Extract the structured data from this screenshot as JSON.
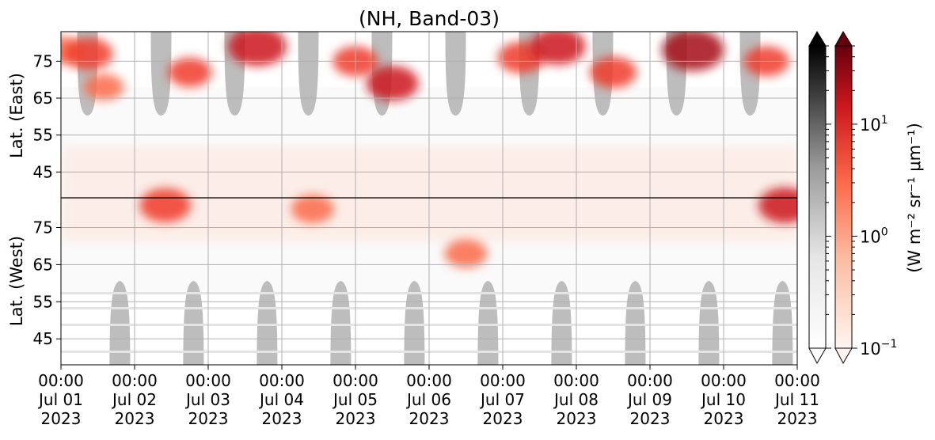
{
  "chart_data": {
    "type": "heatmap",
    "title": "(NH, Band-03)",
    "ylabel_upper": "Lat. (East)",
    "ylabel_lower": "Lat. (West)",
    "xlim": [
      "2023-07-01 00:00",
      "2023-07-11 00:00"
    ],
    "x_ticks": [
      {
        "time": "00:00",
        "date": "Jul 01",
        "year": "2023"
      },
      {
        "time": "00:00",
        "date": "Jul 02",
        "year": "2023"
      },
      {
        "time": "00:00",
        "date": "Jul 03",
        "year": "2023"
      },
      {
        "time": "00:00",
        "date": "Jul 04",
        "year": "2023"
      },
      {
        "time": "00:00",
        "date": "Jul 05",
        "year": "2023"
      },
      {
        "time": "00:00",
        "date": "Jul 06",
        "year": "2023"
      },
      {
        "time": "00:00",
        "date": "Jul 07",
        "year": "2023"
      },
      {
        "time": "00:00",
        "date": "Jul 08",
        "year": "2023"
      },
      {
        "time": "00:00",
        "date": "Jul 09",
        "year": "2023"
      },
      {
        "time": "00:00",
        "date": "Jul 10",
        "year": "2023"
      },
      {
        "time": "00:00",
        "date": "Jul 11",
        "year": "2023"
      }
    ],
    "y_ticks_upper": [
      "45",
      "55",
      "65",
      "75"
    ],
    "y_ticks_lower": [
      "75",
      "65",
      "55",
      "45"
    ],
    "upper_lat_range": [
      38,
      83
    ],
    "lower_lat_range": [
      83,
      38
    ],
    "grid": true,
    "colorbar": {
      "label": "(W m⁻² sr⁻¹ μm⁻¹)",
      "scale": "log",
      "range": [
        0.1,
        50
      ],
      "ticks": [
        {
          "base": "10",
          "exp": "−1",
          "value": 0.1
        },
        {
          "base": "10",
          "exp": "0",
          "value": 1
        },
        {
          "base": "10",
          "exp": "1",
          "value": 10
        }
      ],
      "cmaps": [
        "Greys",
        "Reds"
      ],
      "extend": "both"
    },
    "masked_daylight_color": "#bdbdbd",
    "intensity_series": [
      {
        "time": "2023-07-01 00:00",
        "lat_east": 78,
        "value": 2.5
      },
      {
        "time": "2023-07-01 09:00",
        "lat_east": 77,
        "value": 6.0
      },
      {
        "time": "2023-07-01 14:00",
        "lat_east": 68,
        "value": 2.0
      },
      {
        "time": "2023-07-02 10:00",
        "lat_west": 81,
        "value": 8.0
      },
      {
        "time": "2023-07-02 18:00",
        "lat_east": 72,
        "value": 3.5
      },
      {
        "time": "2023-07-03 16:00",
        "lat_east": 79,
        "value": 18.0
      },
      {
        "time": "2023-07-04 10:00",
        "lat_west": 80,
        "value": 3.0
      },
      {
        "time": "2023-07-05 00:00",
        "lat_east": 75,
        "value": 4.0
      },
      {
        "time": "2023-07-05 12:00",
        "lat_east": 69,
        "value": 9.0
      },
      {
        "time": "2023-07-06 12:00",
        "lat_west": 68,
        "value": 3.0
      },
      {
        "time": "2023-07-07 06:00",
        "lat_east": 76,
        "value": 5.0
      },
      {
        "time": "2023-07-07 18:00",
        "lat_east": 79,
        "value": 12.0
      },
      {
        "time": "2023-07-08 12:00",
        "lat_east": 72,
        "value": 5.0
      },
      {
        "time": "2023-07-09 14:00",
        "lat_east": 78,
        "value": 25.0
      },
      {
        "time": "2023-07-10 14:00",
        "lat_east": 75,
        "value": 4.0
      },
      {
        "time": "2023-07-10 20:00",
        "lat_west": 81,
        "value": 10.0
      }
    ]
  }
}
